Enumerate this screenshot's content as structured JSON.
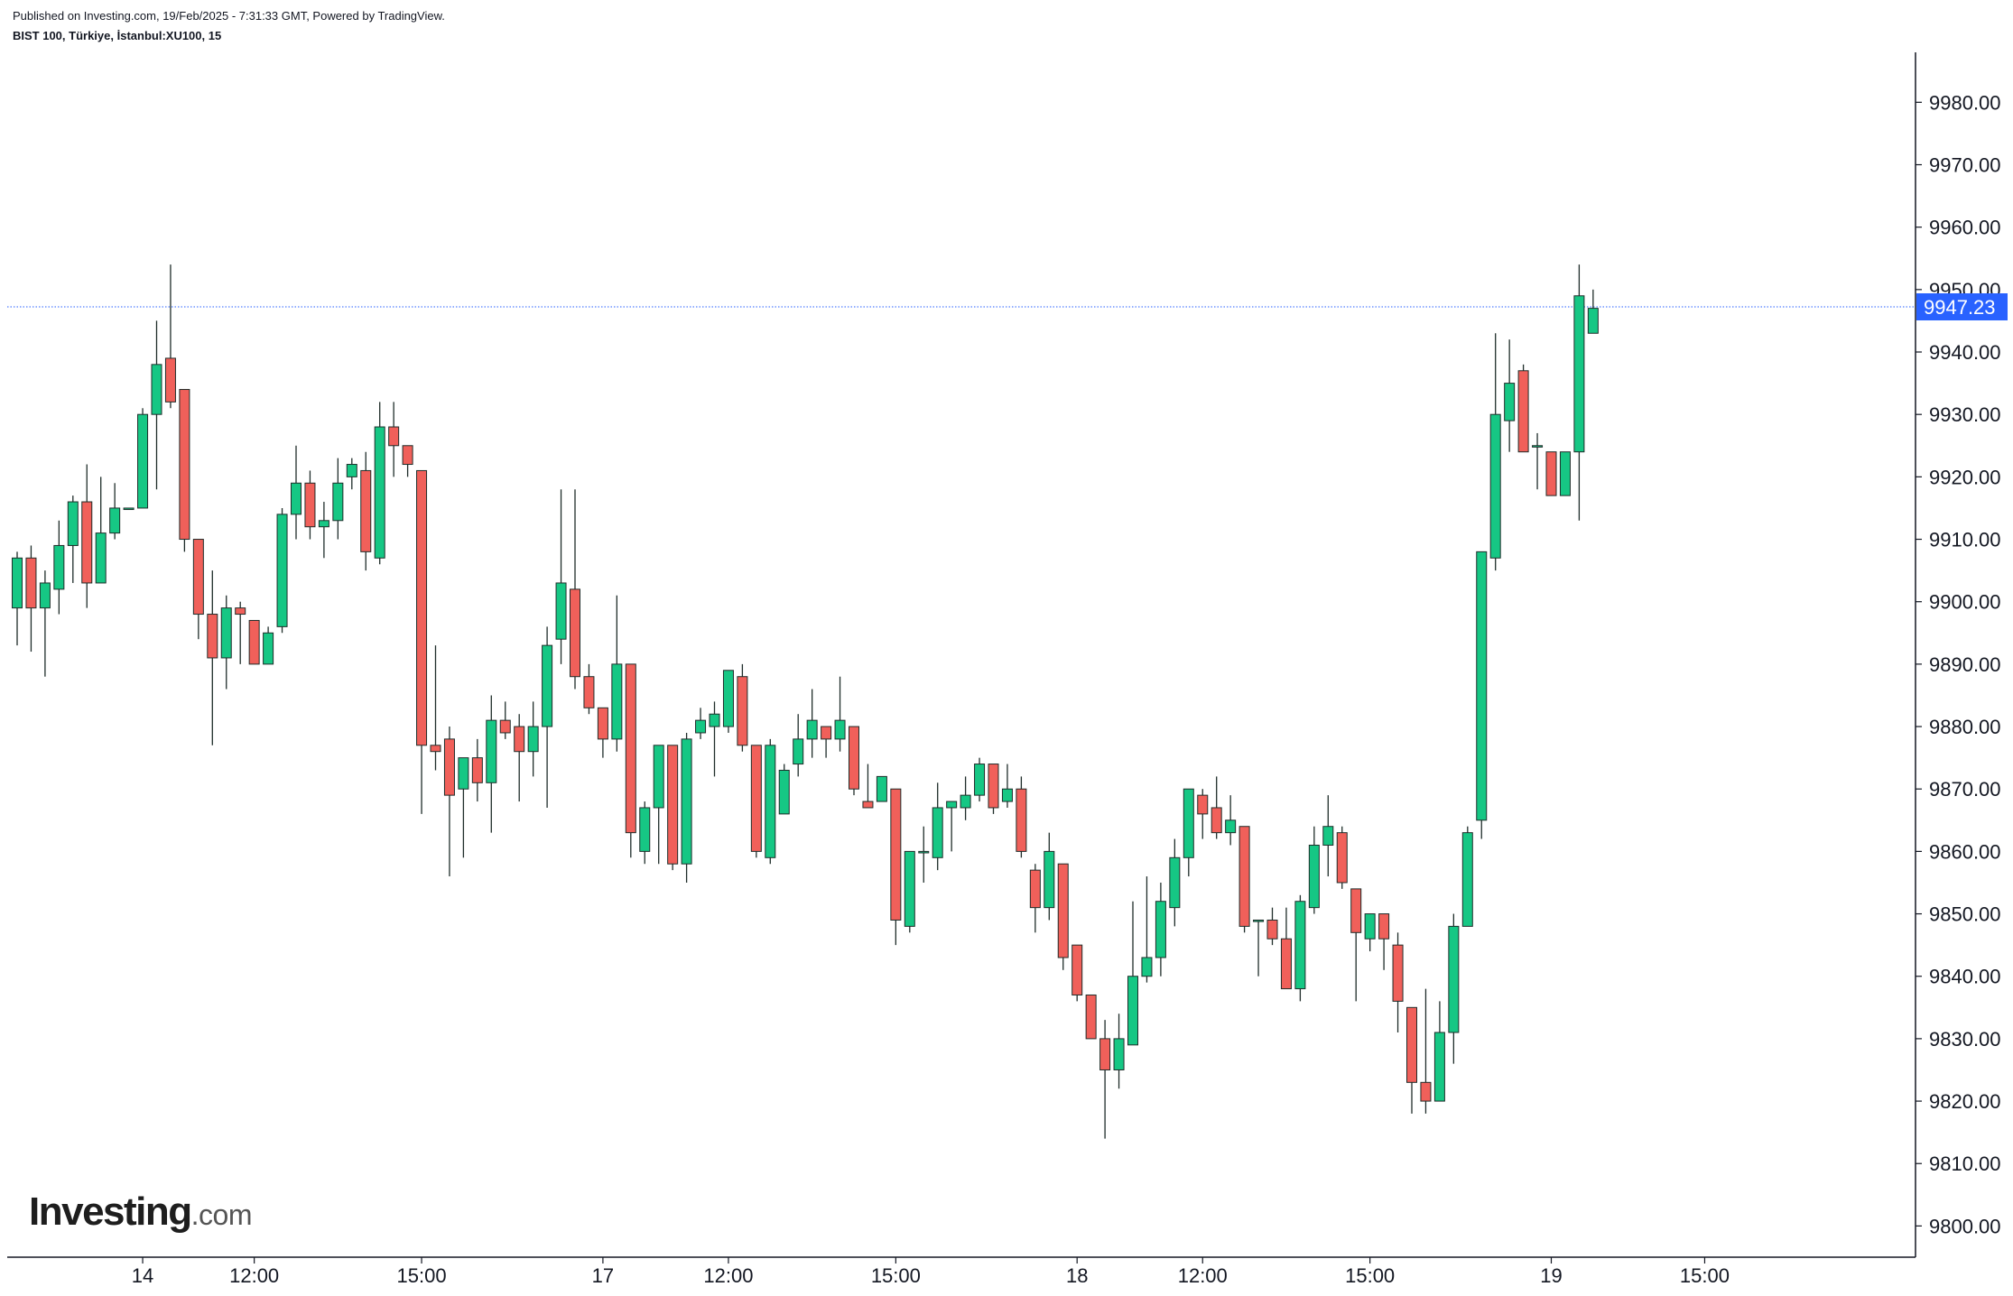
{
  "header": {
    "published": "Published on Investing.com, 19/Feb/2025 - 7:31:33 GMT, Powered by TradingView.",
    "symbol": "BIST 100, Türkiye, İstanbul:XU100, 15"
  },
  "logo": {
    "brand": "Investing",
    "domain": ".com"
  },
  "colors": {
    "up": "#16c784",
    "down": "#f0605a",
    "wick": "#1f2d2a",
    "last_price_bg": "#2962ff",
    "price_line": "#2962ff"
  },
  "chart_data": {
    "type": "candlestick",
    "yrange": [
      9795,
      9988
    ],
    "y_ticks": [
      9800,
      9810,
      9820,
      9830,
      9840,
      9850,
      9860,
      9870,
      9880,
      9890,
      9900,
      9910,
      9920,
      9930,
      9940,
      9950,
      9960,
      9970,
      9980
    ],
    "x_ticks": [
      {
        "label": "14",
        "index": 9
      },
      {
        "label": "12:00",
        "index": 17
      },
      {
        "label": "15:00",
        "index": 29
      },
      {
        "label": "17",
        "index": 42
      },
      {
        "label": "12:00",
        "index": 51
      },
      {
        "label": "15:00",
        "index": 63
      },
      {
        "label": "18",
        "index": 76
      },
      {
        "label": "12:00",
        "index": 85
      },
      {
        "label": "15:00",
        "index": 97
      },
      {
        "label": "19",
        "index": 110
      },
      {
        "label": "15:00",
        "index": 121
      }
    ],
    "last_price": 9947.23,
    "last_price_label": "9947.23",
    "candles": [
      [
        9899,
        9908,
        9893,
        9907
      ],
      [
        9907,
        9909,
        9892,
        9899
      ],
      [
        9899,
        9905,
        9888,
        9903
      ],
      [
        9902,
        9913,
        9898,
        9909
      ],
      [
        9909,
        9917,
        9903,
        9916
      ],
      [
        9916,
        9922,
        9899,
        9903
      ],
      [
        9903,
        9920,
        9903,
        9911
      ],
      [
        9911,
        9919,
        9910,
        9915
      ],
      [
        9915,
        9915,
        9915,
        9915
      ],
      [
        9915,
        9931,
        9915,
        9930
      ],
      [
        9930,
        9945,
        9918,
        9938
      ],
      [
        9939,
        9954,
        9931,
        9932
      ],
      [
        9934,
        9934,
        9908,
        9910
      ],
      [
        9910,
        9910,
        9894,
        9898
      ],
      [
        9898,
        9905,
        9877,
        9891
      ],
      [
        9891,
        9901,
        9886,
        9899
      ],
      [
        9899,
        9900,
        9890,
        9898
      ],
      [
        9897,
        9897,
        9890,
        9890
      ],
      [
        9890,
        9896,
        9890,
        9895
      ],
      [
        9896,
        9915,
        9895,
        9914
      ],
      [
        9914,
        9925,
        9910,
        9919
      ],
      [
        9919,
        9921,
        9910,
        9912
      ],
      [
        9912,
        9916,
        9907,
        9913
      ],
      [
        9913,
        9923,
        9910,
        9919
      ],
      [
        9920,
        9923,
        9918,
        9922
      ],
      [
        9921,
        9924,
        9905,
        9908
      ],
      [
        9907,
        9932,
        9906,
        9928
      ],
      [
        9928,
        9932,
        9920,
        9925
      ],
      [
        9925,
        9925,
        9920,
        9922
      ],
      [
        9921,
        9921,
        9866,
        9877
      ],
      [
        9877,
        9893,
        9873,
        9876
      ],
      [
        9878,
        9880,
        9856,
        9869
      ],
      [
        9870,
        9875,
        9859,
        9875
      ],
      [
        9875,
        9878,
        9868,
        9871
      ],
      [
        9871,
        9885,
        9863,
        9881
      ],
      [
        9881,
        9884,
        9878,
        9879
      ],
      [
        9880,
        9882,
        9868,
        9876
      ],
      [
        9876,
        9884,
        9872,
        9880
      ],
      [
        9880,
        9896,
        9867,
        9893
      ],
      [
        9894,
        9918,
        9890,
        9903
      ],
      [
        9902,
        9918,
        9886,
        9888
      ],
      [
        9888,
        9890,
        9882,
        9883
      ],
      [
        9883,
        9883,
        9875,
        9878
      ],
      [
        9878,
        9901,
        9876,
        9890
      ],
      [
        9890,
        9890,
        9859,
        9863
      ],
      [
        9860,
        9868,
        9858,
        9867
      ],
      [
        9867,
        9877,
        9858,
        9877
      ],
      [
        9877,
        9877,
        9857,
        9858
      ],
      [
        9858,
        9879,
        9855,
        9878
      ],
      [
        9879,
        9883,
        9878,
        9881
      ],
      [
        9880,
        9884,
        9872,
        9882
      ],
      [
        9880,
        9889,
        9879,
        9889
      ],
      [
        9888,
        9890,
        9876,
        9877
      ],
      [
        9877,
        9877,
        9859,
        9860
      ],
      [
        9859,
        9878,
        9858,
        9877
      ],
      [
        9866,
        9874,
        9866,
        9873
      ],
      [
        9874,
        9882,
        9872,
        9878
      ],
      [
        9878,
        9886,
        9875,
        9881
      ],
      [
        9880,
        9880,
        9875,
        9878
      ],
      [
        9878,
        9888,
        9876,
        9881
      ],
      [
        9880,
        9880,
        9869,
        9870
      ],
      [
        9868,
        9874,
        9867,
        9867
      ],
      [
        9868,
        9871,
        9869,
        9872
      ],
      [
        9870,
        9870,
        9845,
        9849
      ],
      [
        9848,
        9860,
        9847,
        9860
      ],
      [
        9860,
        9864,
        9855,
        9860
      ],
      [
        9859,
        9871,
        9857,
        9867
      ],
      [
        9867,
        9868,
        9860,
        9868
      ],
      [
        9867,
        9872,
        9865,
        9869
      ],
      [
        9869,
        9875,
        9868,
        9874
      ],
      [
        9874,
        9874,
        9866,
        9867
      ],
      [
        9868,
        9874,
        9867,
        9870
      ],
      [
        9870,
        9872,
        9859,
        9860
      ],
      [
        9857,
        9858,
        9847,
        9851
      ],
      [
        9851,
        9863,
        9849,
        9860
      ],
      [
        9858,
        9858,
        9841,
        9843
      ],
      [
        9845,
        9845,
        9836,
        9837
      ],
      [
        9837,
        9837,
        9830,
        9830
      ],
      [
        9830,
        9833,
        9814,
        9825
      ],
      [
        9825,
        9834,
        9822,
        9830
      ],
      [
        9829,
        9852,
        9829,
        9840
      ],
      [
        9840,
        9856,
        9839,
        9843
      ],
      [
        9843,
        9855,
        9840,
        9852
      ],
      [
        9851,
        9862,
        9848,
        9859
      ],
      [
        9859,
        9870,
        9856,
        9870
      ],
      [
        9869,
        9870,
        9862,
        9866
      ],
      [
        9867,
        9872,
        9862,
        9863
      ],
      [
        9863,
        9869,
        9861,
        9865
      ],
      [
        9864,
        9864,
        9847,
        9848
      ],
      [
        9849,
        9849,
        9840,
        9849
      ],
      [
        9849,
        9851,
        9845,
        9846
      ],
      [
        9846,
        9851,
        9838,
        9838
      ],
      [
        9838,
        9853,
        9836,
        9852
      ],
      [
        9851,
        9864,
        9850,
        9861
      ],
      [
        9861,
        9869,
        9856,
        9864
      ],
      [
        9863,
        9864,
        9854,
        9855
      ],
      [
        9854,
        9854,
        9836,
        9847
      ],
      [
        9846,
        9850,
        9844,
        9850
      ],
      [
        9850,
        9850,
        9841,
        9846
      ],
      [
        9845,
        9847,
        9831,
        9836
      ],
      [
        9835,
        9835,
        9818,
        9823
      ],
      [
        9823,
        9838,
        9818,
        9820
      ],
      [
        9820,
        9836,
        9820,
        9831
      ],
      [
        9831,
        9850,
        9826,
        9848
      ],
      [
        9848,
        9864,
        9848,
        9863
      ],
      [
        9865,
        9908,
        9862,
        9908
      ],
      [
        9907,
        9943,
        9905,
        9930
      ],
      [
        9929,
        9942,
        9924,
        9935
      ],
      [
        9937,
        9938,
        9924,
        9924
      ],
      [
        9925,
        9927,
        9918,
        9925
      ],
      [
        9924,
        9924,
        9917,
        9917
      ],
      [
        9917,
        9924,
        9917,
        9924
      ],
      [
        9924,
        9954,
        9913,
        9949
      ],
      [
        9943,
        9950,
        9943,
        9947
      ]
    ]
  }
}
